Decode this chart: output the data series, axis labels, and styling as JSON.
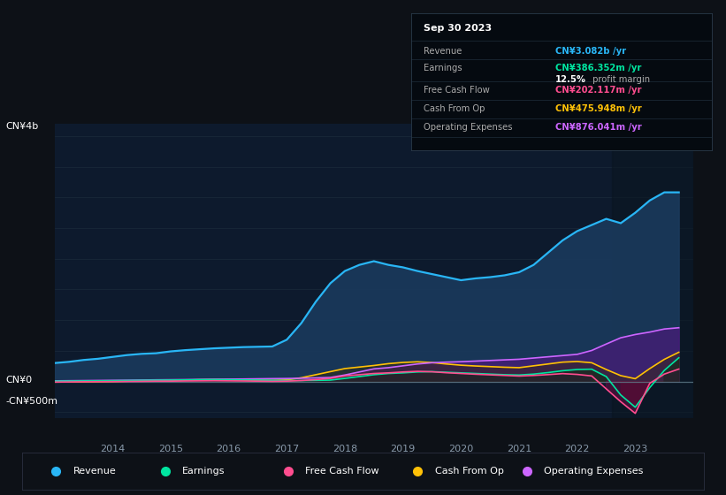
{
  "bg_color": "#0d1117",
  "plot_bg_color": "#0d1a2d",
  "grid_color": "#1a2a3a",
  "revenue_line_color": "#29b6f6",
  "revenue_fill_color": "#1a3a5c",
  "earnings_color": "#00e5a0",
  "earnings_fill_color": "#003030",
  "fcf_color": "#ff4d8f",
  "fcf_fill_color": "#3a1030",
  "cashfromop_color": "#ffc107",
  "cashfromop_fill_color": "#3a2800",
  "opex_color": "#cc66ff",
  "opex_fill_color": "#4a1a7a",
  "zero_line_color": "#607d8b",
  "highlight_bg": "#111d2e",
  "legend_items": [
    "Revenue",
    "Earnings",
    "Free Cash Flow",
    "Cash From Op",
    "Operating Expenses"
  ],
  "legend_colors": [
    "#29b6f6",
    "#00e5a0",
    "#ff4d8f",
    "#ffc107",
    "#cc66ff"
  ],
  "years": [
    2013.0,
    2013.25,
    2013.5,
    2013.75,
    2014.0,
    2014.25,
    2014.5,
    2014.75,
    2015.0,
    2015.25,
    2015.5,
    2015.75,
    2016.0,
    2016.25,
    2016.5,
    2016.75,
    2017.0,
    2017.25,
    2017.5,
    2017.75,
    2018.0,
    2018.25,
    2018.5,
    2018.75,
    2019.0,
    2019.25,
    2019.5,
    2019.75,
    2020.0,
    2020.25,
    2020.5,
    2020.75,
    2021.0,
    2021.25,
    2021.5,
    2021.75,
    2022.0,
    2022.25,
    2022.5,
    2022.75,
    2023.0,
    2023.25,
    2023.5,
    2023.75
  ],
  "revenue": [
    300,
    320,
    350,
    370,
    400,
    430,
    450,
    460,
    490,
    510,
    525,
    540,
    550,
    560,
    565,
    570,
    680,
    950,
    1300,
    1600,
    1800,
    1900,
    1960,
    1900,
    1860,
    1800,
    1750,
    1700,
    1650,
    1680,
    1700,
    1730,
    1780,
    1900,
    2100,
    2300,
    2450,
    2550,
    2650,
    2580,
    2750,
    2950,
    3082,
    3082
  ],
  "earnings": [
    5,
    6,
    8,
    10,
    12,
    15,
    18,
    20,
    22,
    25,
    28,
    30,
    28,
    25,
    22,
    18,
    15,
    15,
    18,
    22,
    50,
    80,
    110,
    130,
    140,
    155,
    160,
    150,
    140,
    130,
    120,
    110,
    105,
    120,
    145,
    175,
    195,
    200,
    80,
    -220,
    -420,
    -100,
    180,
    386
  ],
  "fcf": [
    -10,
    -8,
    -5,
    -3,
    -2,
    0,
    2,
    5,
    5,
    8,
    10,
    12,
    10,
    8,
    5,
    2,
    5,
    15,
    30,
    50,
    90,
    110,
    130,
    140,
    155,
    165,
    158,
    142,
    130,
    118,
    108,
    98,
    88,
    98,
    112,
    128,
    115,
    90,
    -120,
    -330,
    -520,
    -30,
    120,
    202
  ],
  "cash_from_op": [
    -10,
    -8,
    -5,
    -3,
    0,
    5,
    10,
    15,
    18,
    22,
    28,
    32,
    30,
    26,
    22,
    18,
    25,
    60,
    110,
    160,
    210,
    235,
    260,
    290,
    310,
    320,
    308,
    285,
    265,
    252,
    242,
    232,
    225,
    255,
    285,
    315,
    325,
    305,
    195,
    95,
    45,
    210,
    360,
    476
  ],
  "opex": [
    10,
    12,
    14,
    16,
    18,
    20,
    23,
    26,
    28,
    30,
    33,
    36,
    38,
    40,
    43,
    46,
    48,
    52,
    58,
    65,
    105,
    155,
    205,
    225,
    255,
    285,
    305,
    315,
    322,
    332,
    342,
    352,
    362,
    382,
    402,
    422,
    442,
    505,
    610,
    712,
    765,
    805,
    855,
    876
  ],
  "ylim": [
    -600,
    4200
  ],
  "xlim": [
    2013.0,
    2024.0
  ],
  "highlight_x_start": 2022.6,
  "tooltip_title": "Sep 30 2023",
  "tooltip_rows": [
    {
      "label": "Revenue",
      "value": "CN¥3.082b /yr",
      "color": "#29b6f6"
    },
    {
      "label": "Earnings",
      "value": "CN¥386.352m /yr",
      "color": "#00e5a0"
    },
    {
      "label": "",
      "value": "12.5% profit margin",
      "color": "profit_margin"
    },
    {
      "label": "Free Cash Flow",
      "value": "CN¥202.117m /yr",
      "color": "#ff4d8f"
    },
    {
      "label": "Cash From Op",
      "value": "CN¥475.948m /yr",
      "color": "#ffc107"
    },
    {
      "label": "Operating Expenses",
      "value": "CN¥876.041m /yr",
      "color": "#cc66ff"
    }
  ]
}
